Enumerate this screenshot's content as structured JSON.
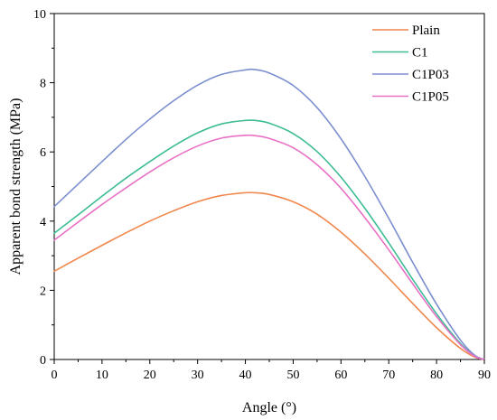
{
  "chart_data": {
    "type": "line",
    "title": "",
    "xlabel": "Angle (°)",
    "ylabel": "Apparent bond strength (MPa)",
    "xlim": [
      0,
      90
    ],
    "ylim": [
      0,
      10
    ],
    "xticks": [
      "0",
      "10",
      "20",
      "30",
      "40",
      "50",
      "60",
      "70",
      "80",
      "90"
    ],
    "yticks": [
      "0",
      "2",
      "4",
      "6",
      "8",
      "10"
    ],
    "grid": false,
    "legend_position": "top-right",
    "x": [
      0,
      5,
      10,
      15,
      20,
      25,
      30,
      35,
      40,
      42,
      45,
      50,
      55,
      60,
      65,
      70,
      75,
      80,
      85,
      88,
      90
    ],
    "series": [
      {
        "name": "Plain",
        "color": "#f0874c",
        "values": [
          2.55,
          2.93,
          3.3,
          3.66,
          4.0,
          4.3,
          4.56,
          4.74,
          4.82,
          4.82,
          4.77,
          4.56,
          4.2,
          3.68,
          3.05,
          2.35,
          1.62,
          0.92,
          0.32,
          0.07,
          0.0
        ]
      },
      {
        "name": "C1",
        "color": "#3dbc96",
        "values": [
          3.65,
          4.18,
          4.72,
          5.24,
          5.72,
          6.17,
          6.55,
          6.81,
          6.91,
          6.91,
          6.83,
          6.53,
          6.01,
          5.27,
          4.37,
          3.37,
          2.32,
          1.32,
          0.46,
          0.1,
          0.0
        ]
      },
      {
        "name": "C1P03",
        "color": "#7b8fcf",
        "values": [
          4.42,
          5.07,
          5.72,
          6.36,
          6.95,
          7.48,
          7.93,
          8.24,
          8.37,
          8.38,
          8.28,
          7.92,
          7.28,
          6.38,
          5.29,
          4.08,
          2.81,
          1.6,
          0.56,
          0.12,
          0.0
        ]
      },
      {
        "name": "C1P05",
        "color": "#e871c6",
        "values": [
          3.45,
          3.97,
          4.48,
          4.96,
          5.42,
          5.83,
          6.17,
          6.4,
          6.48,
          6.47,
          6.39,
          6.12,
          5.63,
          4.95,
          4.1,
          3.17,
          2.19,
          1.24,
          0.43,
          0.09,
          0.0
        ]
      }
    ]
  }
}
